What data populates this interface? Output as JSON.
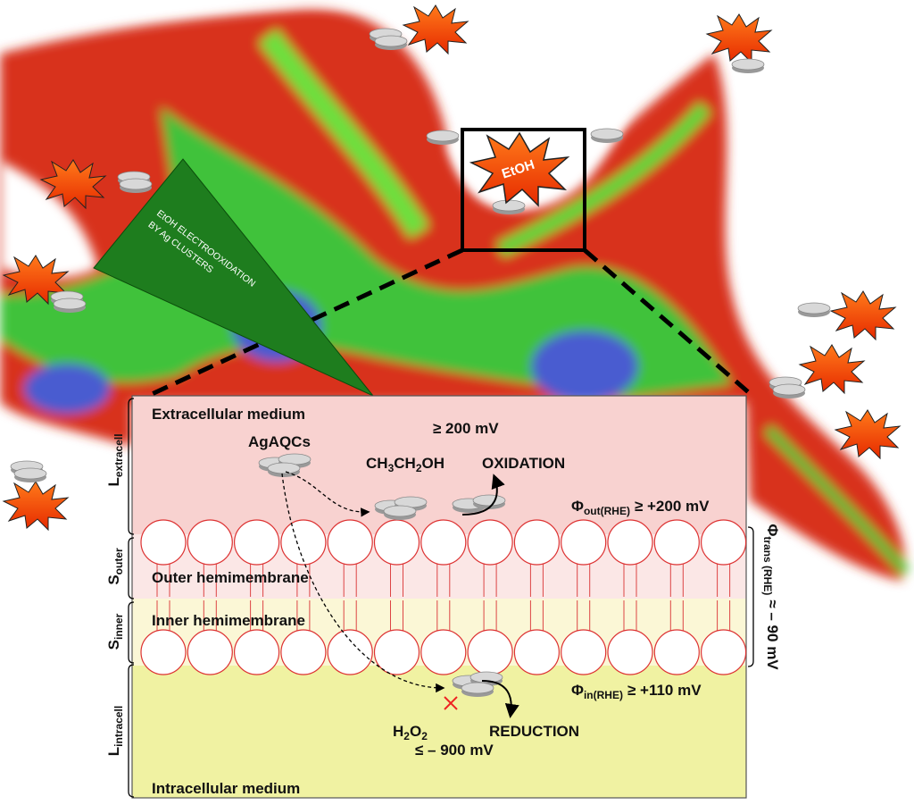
{
  "callout": {
    "etoh": "EtOH",
    "title_lines": [
      "EtOH ELECTROOXIDATION",
      "BY Ag CLUSTERS"
    ]
  },
  "membrane_panel": {
    "extracellular_label": "Extracellular medium",
    "clusters_label": "AgAQCs",
    "oxidation": {
      "potential": "≥ 200 mV",
      "reactant": [
        "CH",
        "3",
        "CH",
        "2",
        "OH"
      ],
      "label": "OXIDATION"
    },
    "phi_out": {
      "symbol": "Φ",
      "subscript": "out(RHE)",
      "value": "≥ +200 mV"
    },
    "outer_label": "Outer hemimembrane",
    "inner_label": "Inner hemimembrane",
    "phi_in": {
      "symbol": "Φ",
      "subscript": "in(RHE)",
      "value": "≥ +110 mV"
    },
    "reduction": {
      "reactant": [
        "H",
        "2",
        "O",
        "2"
      ],
      "potential": "≤ – 900 mV",
      "label": "REDUCTION"
    },
    "intracellular_label": "Intracellular medium",
    "layers": [
      {
        "symbol": "L",
        "subscript": "extracell"
      },
      {
        "symbol": "S",
        "subscript": "outer"
      },
      {
        "symbol": "S",
        "subscript": "inner"
      },
      {
        "symbol": "L",
        "subscript": "intracell"
      }
    ],
    "phi_trans": {
      "symbol": "Φ",
      "subscript": "trans (RHE)",
      "value": "≈ – 90 mV"
    }
  }
}
